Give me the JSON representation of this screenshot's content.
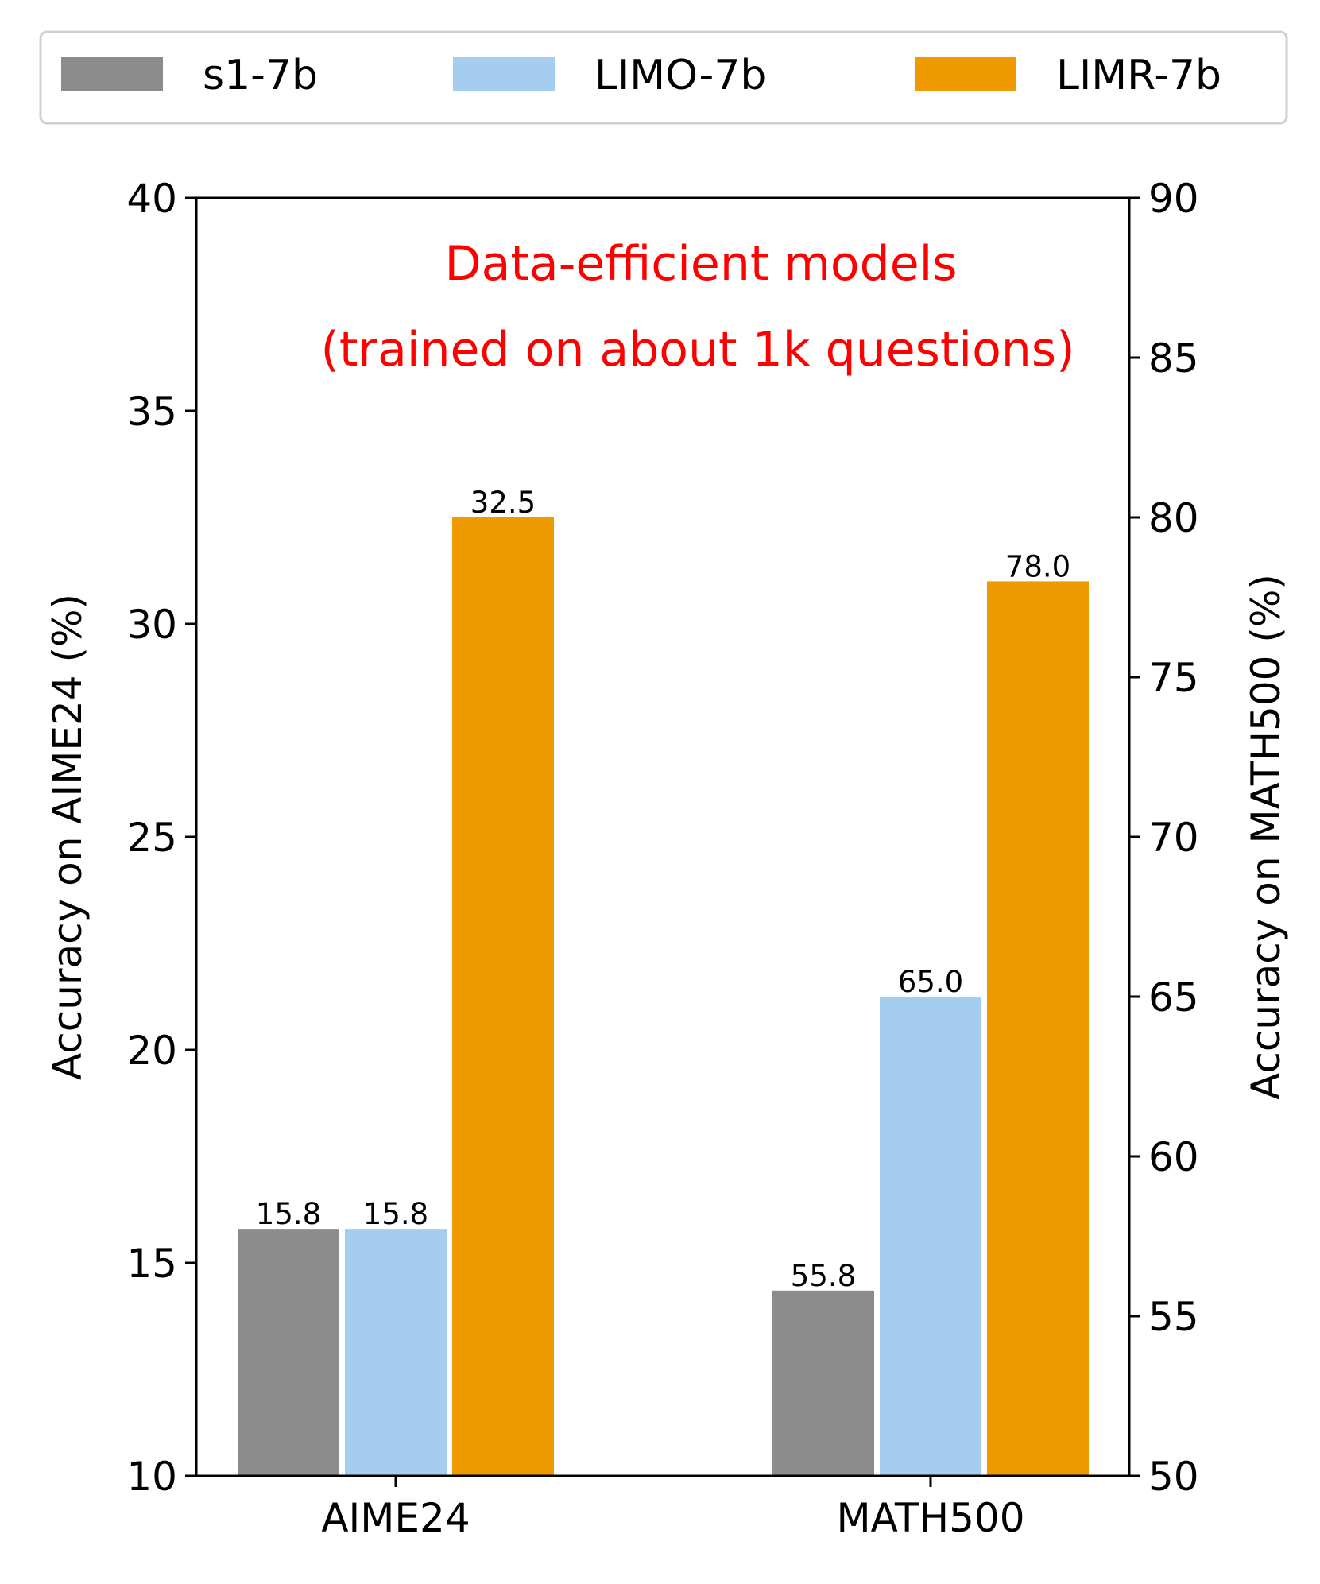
{
  "chart_data": {
    "type": "bar",
    "title": "",
    "categories": [
      "AIME24",
      "MATH500"
    ],
    "series": [
      {
        "name": "s1-7b",
        "color": "#8c8c8c",
        "values": [
          15.8,
          55.8
        ]
      },
      {
        "name": "LIMO-7b",
        "color": "#a4cdf0",
        "values": [
          15.8,
          65.0
        ]
      },
      {
        "name": "LIMR-7b",
        "color": "#ee9a00",
        "values": [
          32.5,
          78.0
        ]
      }
    ],
    "value_labels": [
      [
        "15.8",
        "55.8"
      ],
      [
        "15.8",
        "65.0"
      ],
      [
        "32.5",
        "78.0"
      ]
    ],
    "category_axis": [
      "left",
      "right"
    ],
    "ylabel_left": "Accuracy on AIME24 (%)",
    "ylabel_right": "Accuracy on MATH500 (%)",
    "ylim_left": [
      10,
      40
    ],
    "ylim_right": [
      50,
      90
    ],
    "yticks_left": [
      10,
      15,
      20,
      25,
      30,
      35,
      40
    ],
    "yticks_right": [
      50,
      55,
      60,
      65,
      70,
      75,
      80,
      85,
      90
    ],
    "annotation": [
      "Data-efficient models",
      "(trained on about 1k questions)"
    ],
    "annotation_color": "#ff0000",
    "legend_placement": "top",
    "grid": false
  }
}
